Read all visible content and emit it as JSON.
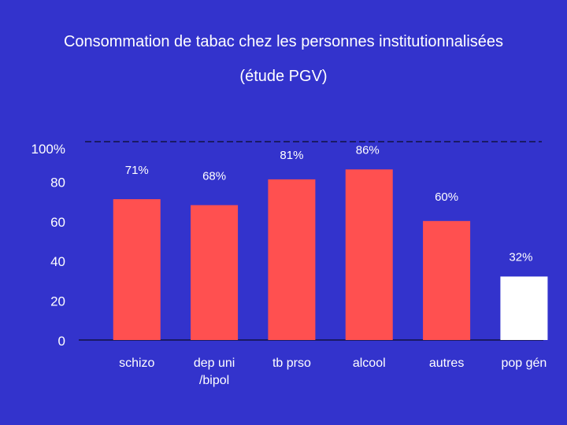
{
  "title_line1": "Consommation de tabac chez les personnes institutionnalisées",
  "title_line2": "(étude PGV)",
  "chart_data": {
    "type": "bar",
    "categories": [
      "schizo",
      "dep uni /bipol",
      "tb prso",
      "alcool",
      "autres",
      "pop gén"
    ],
    "category_lines": [
      [
        "schizo"
      ],
      [
        "dep uni",
        "/bipol"
      ],
      [
        "tb prso"
      ],
      [
        "alcool"
      ],
      [
        "autres"
      ],
      [
        "pop gén"
      ]
    ],
    "values": [
      71,
      68,
      81,
      86,
      60,
      32
    ],
    "data_labels": [
      "71%",
      "68%",
      "81%",
      "86%",
      "60%",
      "32%"
    ],
    "bar_colors": [
      "#ff5050",
      "#ff5050",
      "#ff5050",
      "#ff5050",
      "#ff5050",
      "#ffffff"
    ],
    "y_ticks": [
      {
        "value": 0,
        "label": "0"
      },
      {
        "value": 20,
        "label": "20"
      },
      {
        "value": 40,
        "label": "40"
      },
      {
        "value": 60,
        "label": "60"
      },
      {
        "value": 80,
        "label": "80"
      },
      {
        "value": 100,
        "label": "100%"
      }
    ],
    "ylim": [
      0,
      100
    ],
    "reference_line": 100,
    "grid": false
  }
}
